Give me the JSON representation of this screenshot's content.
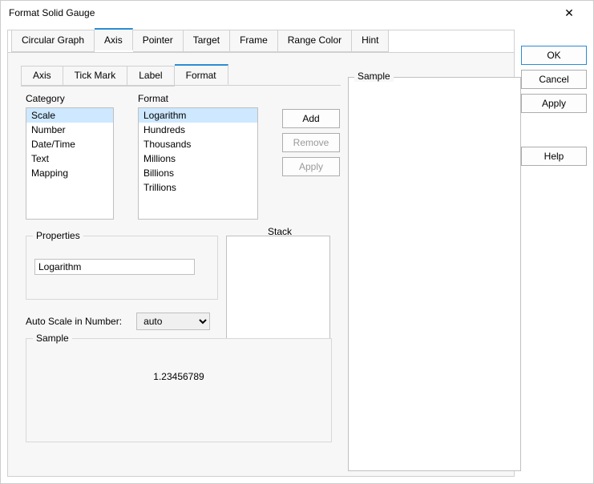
{
  "dialog": {
    "title": "Format Solid Gauge"
  },
  "outerTabs": {
    "items": [
      "Circular Graph",
      "Axis",
      "Pointer",
      "Target",
      "Frame",
      "Range Color",
      "Hint"
    ],
    "activeIndex": 1
  },
  "innerTabs": {
    "items": [
      "Axis",
      "Tick Mark",
      "Label",
      "Format"
    ],
    "activeIndex": 3
  },
  "category": {
    "label": "Category",
    "items": [
      "Scale",
      "Number",
      "Date/Time",
      "Text",
      "Mapping"
    ],
    "selectedIndex": 0
  },
  "format": {
    "label": "Format",
    "items": [
      "Logarithm",
      "Hundreds",
      "Thousands",
      "Millions",
      "Billions",
      "Trillions"
    ],
    "selectedIndex": 0
  },
  "actions": {
    "add": "Add",
    "remove": "Remove",
    "apply": "Apply"
  },
  "properties": {
    "label": "Properties",
    "value": "Logarithm"
  },
  "stack": {
    "label": "Stack"
  },
  "autoscale": {
    "label": "Auto Scale in Number:",
    "value": "auto"
  },
  "sample": {
    "label": "Sample",
    "value": "1.23456789"
  },
  "rightSample": {
    "label": "Sample"
  },
  "buttons": {
    "ok": "OK",
    "cancel": "Cancel",
    "apply": "Apply",
    "help": "Help"
  },
  "colors": {
    "accent": "#2a8dd4",
    "selection": "#cde8ff",
    "border": "#d0d0d0",
    "panel": "#f7f7f7"
  }
}
